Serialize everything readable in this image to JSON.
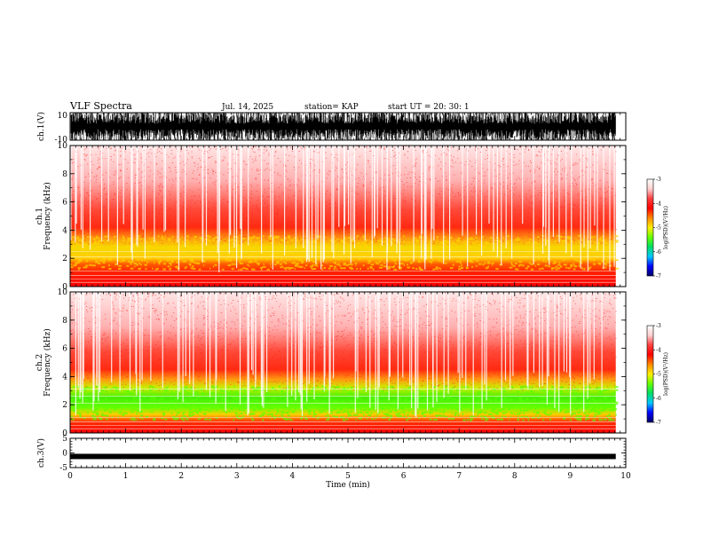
{
  "header": {
    "title": "VLF Spectra",
    "date": "Jul. 14, 2025",
    "station": "station= KAP",
    "start": "start UT =  20: 30: 1"
  },
  "colors": {
    "spectrogram": [
      "#ffffff",
      "#ffd0d0",
      "#ff4040",
      "#ff0000",
      "#ff8800",
      "#ffee00",
      "#66ff00",
      "#00dd66",
      "#00c8ff",
      "#0000ff",
      "#000066"
    ],
    "waveform": "#000000",
    "axes": "#000000"
  },
  "chart_data": [
    {
      "type": "line",
      "name": "ch1-waveform",
      "ylabel": "ch.1(V)",
      "ylim": [
        -10,
        10
      ],
      "yticks": [
        "10",
        "-10"
      ],
      "xlim": [
        0,
        10
      ],
      "description_values": "broadband noise saturating near ±10 V"
    },
    {
      "type": "heatmap",
      "name": "ch1-spectrogram",
      "ylabel": "ch.1\nFrequency (kHz)",
      "ylabel_top": "ch.1",
      "ylabel_bottom": "Frequency (kHz)",
      "ylim": [
        0,
        10
      ],
      "yticks": [
        "0",
        "2",
        "4",
        "6",
        "8",
        "10"
      ],
      "xlim": [
        0,
        10
      ],
      "data_end_min": 9.82,
      "colorbar": {
        "label": "log(PSD)(V²/Hz)",
        "range": [
          -7,
          -3
        ],
        "ticks": [
          "-3",
          "-4",
          "-5",
          "-6",
          "-7"
        ]
      }
    },
    {
      "type": "heatmap",
      "name": "ch2-spectrogram",
      "ylabel_top": "ch.2",
      "ylabel_bottom": "Frequency (kHz)",
      "ylim": [
        0,
        10
      ],
      "yticks": [
        "0",
        "2",
        "4",
        "6",
        "8",
        "10"
      ],
      "xlim": [
        0,
        10
      ],
      "data_end_min": 9.82,
      "colorbar": {
        "label": "log(PSD)(V²/Hz)",
        "range": [
          -7,
          -3
        ],
        "ticks": [
          "-3",
          "-4",
          "-5",
          "-6",
          "-7"
        ]
      }
    },
    {
      "type": "line",
      "name": "ch3-waveform",
      "ylabel": "ch.3(V)",
      "ylim": [
        -5,
        5
      ],
      "yticks": [
        "5",
        "0",
        "-5"
      ],
      "xlim": [
        0,
        10
      ],
      "level_v": -1.2,
      "xlabel": "Time (min)",
      "xticks": [
        "0",
        "1",
        "2",
        "3",
        "4",
        "5",
        "6",
        "7",
        "8",
        "9",
        "10"
      ]
    }
  ]
}
